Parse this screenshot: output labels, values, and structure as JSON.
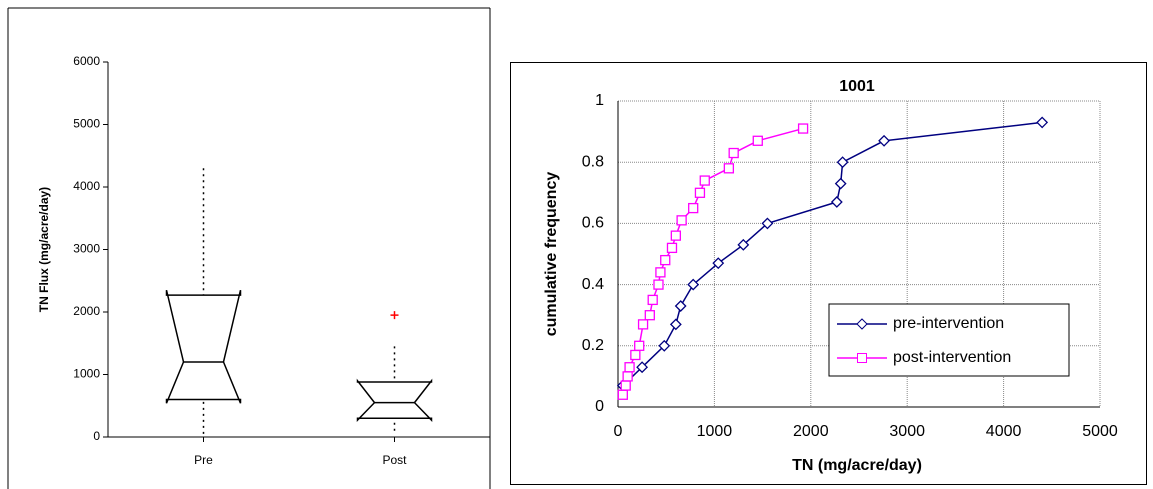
{
  "chart_data": [
    {
      "type": "box",
      "ylabel": "TN Flux (mg/acre/day)",
      "categories": [
        "Pre",
        "Post"
      ],
      "boxes": [
        {
          "low": 50,
          "q1": 600,
          "notch_low": 540,
          "median": 1200,
          "notch_high": 2350,
          "q3": 2270,
          "high": 4300,
          "outliers": []
        },
        {
          "low": 100,
          "q1": 300,
          "notch_low": 270,
          "median": 550,
          "notch_high": 900,
          "q3": 880,
          "high": 1450,
          "outliers": [
            1950
          ]
        }
      ],
      "color": "#000000",
      "outlier_color": "#ff0000",
      "ylim": [
        0,
        6000
      ],
      "yticks": [
        0,
        1000,
        2000,
        3000,
        4000,
        5000,
        6000
      ]
    },
    {
      "type": "line",
      "title": "1001",
      "xlabel": "TN (mg/acre/day)",
      "ylabel": "cumulative frequency",
      "series": [
        {
          "name": "pre-intervention",
          "color": "#000080",
          "marker": "diamond",
          "x": [
            50,
            250,
            480,
            600,
            650,
            780,
            1040,
            1300,
            1550,
            2270,
            2310,
            2330,
            2760,
            4400
          ],
          "values": [
            0.07,
            0.13,
            0.2,
            0.27,
            0.33,
            0.4,
            0.47,
            0.53,
            0.6,
            0.67,
            0.73,
            0.8,
            0.87,
            0.93
          ]
        },
        {
          "name": "post-intervention",
          "color": "#ff00ff",
          "marker": "square",
          "x": [
            50,
            80,
            100,
            120,
            180,
            220,
            260,
            330,
            360,
            420,
            440,
            490,
            560,
            600,
            660,
            780,
            850,
            900,
            1150,
            1200,
            1450,
            1920
          ],
          "values": [
            0.04,
            0.07,
            0.1,
            0.13,
            0.17,
            0.2,
            0.27,
            0.3,
            0.35,
            0.4,
            0.44,
            0.48,
            0.52,
            0.56,
            0.61,
            0.65,
            0.7,
            0.74,
            0.78,
            0.83,
            0.87,
            0.91
          ]
        }
      ],
      "xlim": [
        0,
        5000
      ],
      "xticks": [
        0,
        1000,
        2000,
        3000,
        4000,
        5000
      ],
      "ylim": [
        0,
        1
      ],
      "yticks": [
        0,
        0.2,
        0.4,
        0.6,
        0.8,
        1
      ],
      "grid": true,
      "legend": "lower right"
    }
  ]
}
